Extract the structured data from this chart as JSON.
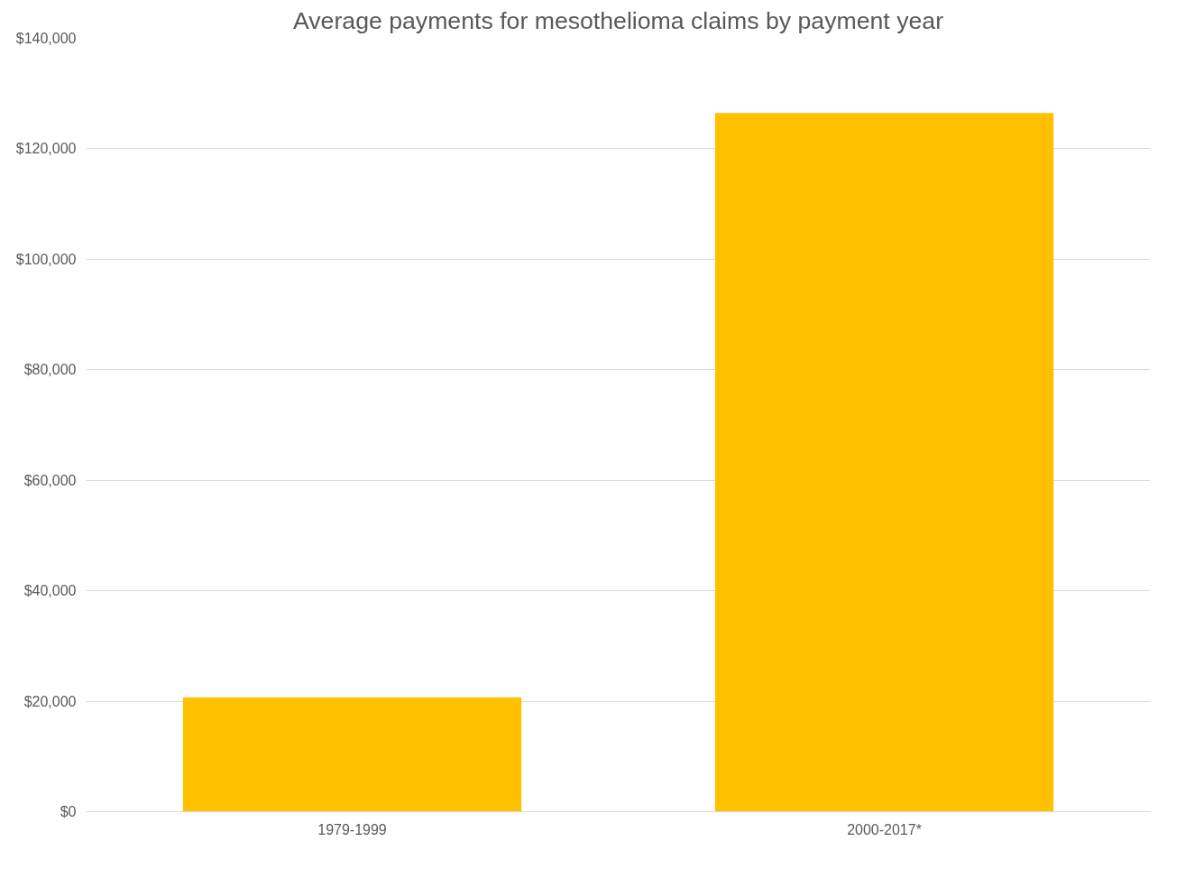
{
  "chart_data": {
    "type": "bar",
    "title": "Average payments for mesothelioma claims by payment year",
    "categories": [
      "1979-1999",
      "2000-2017*"
    ],
    "values": [
      20700,
      126500
    ],
    "color": "#ffc000",
    "ylim": [
      0,
      140000
    ],
    "yticks": [
      {
        "value": 0,
        "label": "$0"
      },
      {
        "value": 20000,
        "label": "$20,000"
      },
      {
        "value": 40000,
        "label": "$40,000"
      },
      {
        "value": 60000,
        "label": "$60,000"
      },
      {
        "value": 80000,
        "label": "$80,000"
      },
      {
        "value": 100000,
        "label": "$100,000"
      },
      {
        "value": 120000,
        "label": "$120,000"
      },
      {
        "value": 140000,
        "label": "$140,000"
      }
    ],
    "grid": "y"
  }
}
